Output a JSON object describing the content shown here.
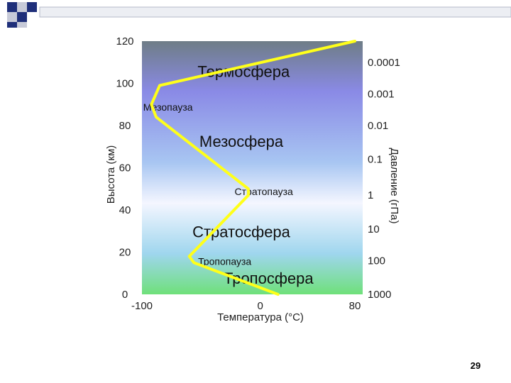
{
  "slide": {
    "number": "29"
  },
  "chart_data": {
    "type": "line",
    "xlabel": "Температура (°C)",
    "ylabel": "Высота (км)",
    "y2label": "Давление (гПа)",
    "xlim": [
      -100,
      80
    ],
    "ylim": [
      0,
      120
    ],
    "x_ticks": [
      "-100",
      "0",
      "80"
    ],
    "y_ticks": [
      "0",
      "20",
      "40",
      "60",
      "80",
      "100",
      "120"
    ],
    "pressure_ticks": [
      {
        "label": "1000",
        "altitude": 0
      },
      {
        "label": "100",
        "altitude": 16
      },
      {
        "label": "10",
        "altitude": 31
      },
      {
        "label": "1",
        "altitude": 47
      },
      {
        "label": "0.1",
        "altitude": 64
      },
      {
        "label": "0.01",
        "altitude": 80
      },
      {
        "label": "0.001",
        "altitude": 95
      },
      {
        "label": "0.0001",
        "altitude": 110
      }
    ],
    "series": [
      {
        "color": "#ffff1a",
        "x": [
          15,
          -56,
          -60,
          -10,
          -10,
          -88,
          -92,
          -85,
          80
        ],
        "y": [
          0,
          15,
          18,
          47,
          50,
          84,
          90,
          99,
          120
        ]
      }
    ],
    "layers": [
      {
        "label": "Термосфера",
        "temp": -14,
        "altitude": 103,
        "size": "big"
      },
      {
        "label": "Мезопауза",
        "temp": -78,
        "altitude": 87,
        "size": "small"
      },
      {
        "label": "Мезосфера",
        "temp": -16,
        "altitude": 70,
        "size": "big"
      },
      {
        "label": "Стратопауза",
        "temp": 3,
        "altitude": 47,
        "size": "small"
      },
      {
        "label": "Стратосфера",
        "temp": -16,
        "altitude": 27,
        "size": "big"
      },
      {
        "label": "Тропопауза",
        "temp": -30,
        "altitude": 14,
        "size": "small"
      },
      {
        "label": "Тропосфера",
        "temp": 7,
        "altitude": 5,
        "size": "big"
      }
    ],
    "gradient_colors": [
      "#6e7d86",
      "#8a8ae6",
      "#a8c6f2",
      "#f4f6ff",
      "#9fd6ee",
      "#6fe07a"
    ]
  }
}
